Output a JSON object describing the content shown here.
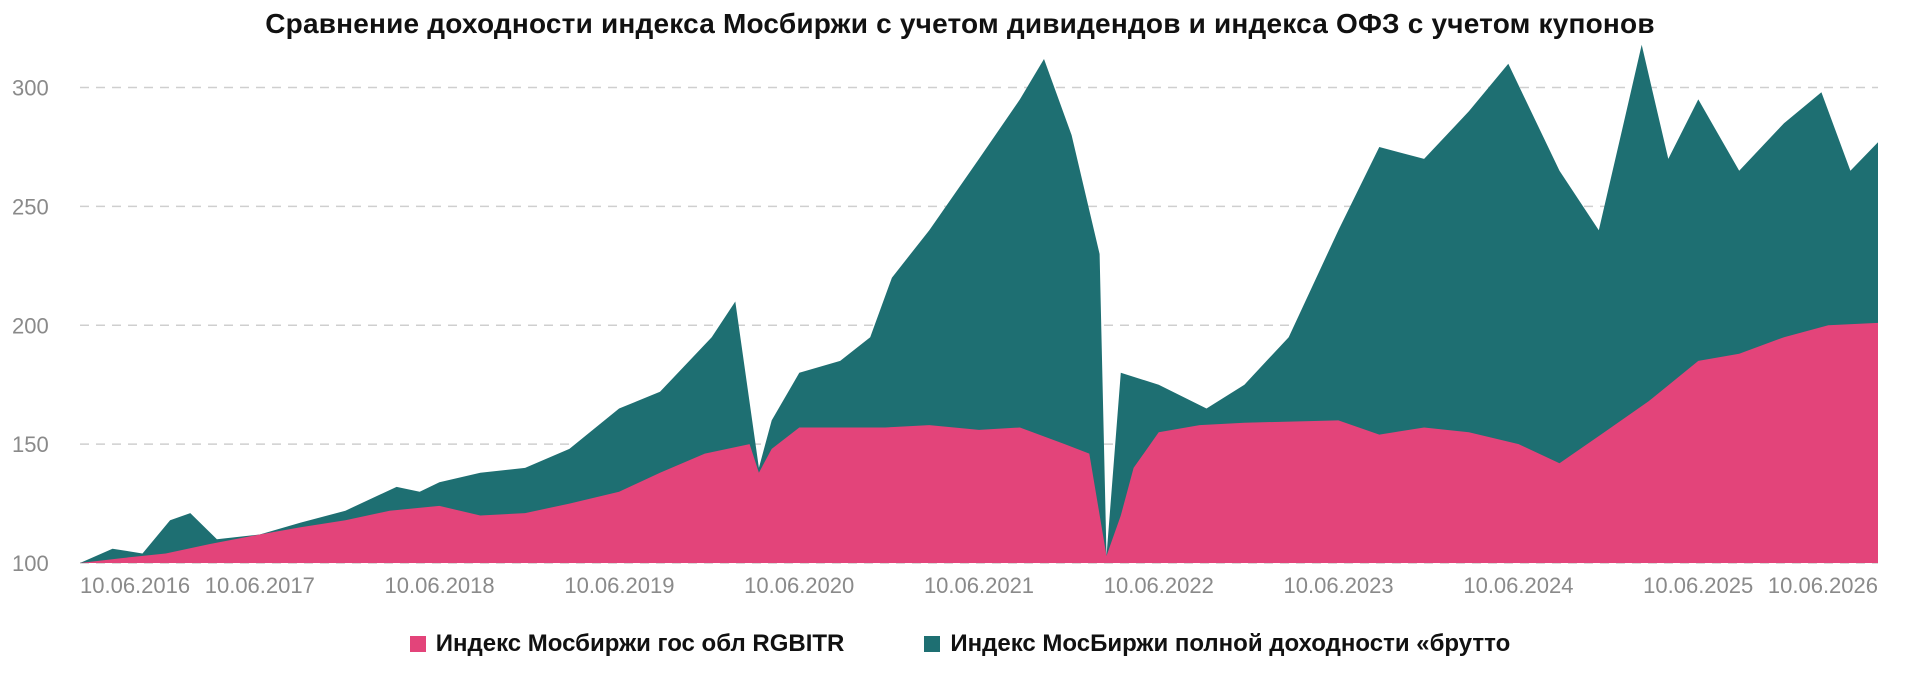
{
  "chart_data": {
    "type": "area",
    "title": "Сравнение доходности индекса Мосбиржи с учетом дивидендов и индекса ОФЗ с учетом купонов",
    "xlabel": "",
    "ylabel": "",
    "x_tick_labels": [
      "10.06.2016",
      "10.06.2017",
      "10.06.2018",
      "10.06.2019",
      "10.06.2020",
      "10.06.2021",
      "10.06.2022",
      "10.06.2023",
      "10.06.2024",
      "10.06.2025",
      "10.06.2026"
    ],
    "y_ticks": [
      100,
      150,
      200,
      250,
      300
    ],
    "ylim": [
      100,
      320
    ],
    "xlim": [
      "2016-06-10",
      "2026-06-10"
    ],
    "grid": "horizontal dashed",
    "legend_position": "bottom",
    "series": [
      {
        "name": "Индекс Мосбиржи гос обл RGBITR",
        "color": "#e3447a",
        "points": [
          [
            "2016-06-10",
            100
          ],
          [
            "2016-09-01",
            102
          ],
          [
            "2016-12-01",
            104
          ],
          [
            "2017-03-01",
            108
          ],
          [
            "2017-06-10",
            112
          ],
          [
            "2017-09-01",
            115
          ],
          [
            "2017-12-01",
            118
          ],
          [
            "2018-03-01",
            122
          ],
          [
            "2018-06-10",
            124
          ],
          [
            "2018-09-01",
            120
          ],
          [
            "2018-12-01",
            121
          ],
          [
            "2019-03-01",
            125
          ],
          [
            "2019-06-10",
            130
          ],
          [
            "2019-09-01",
            138
          ],
          [
            "2019-12-01",
            146
          ],
          [
            "2020-03-01",
            150
          ],
          [
            "2020-03-20",
            138
          ],
          [
            "2020-04-15",
            148
          ],
          [
            "2020-06-10",
            157
          ],
          [
            "2020-12-01",
            157
          ],
          [
            "2021-03-01",
            158
          ],
          [
            "2021-06-10",
            156
          ],
          [
            "2021-09-01",
            157
          ],
          [
            "2021-12-01",
            150
          ],
          [
            "2022-01-20",
            146
          ],
          [
            "2022-02-24",
            103
          ],
          [
            "2022-03-25",
            120
          ],
          [
            "2022-04-20",
            140
          ],
          [
            "2022-06-10",
            155
          ],
          [
            "2022-09-01",
            158
          ],
          [
            "2022-12-01",
            159
          ],
          [
            "2023-06-10",
            160
          ],
          [
            "2023-09-01",
            154
          ],
          [
            "2023-12-01",
            157
          ],
          [
            "2024-03-01",
            155
          ],
          [
            "2024-06-10",
            150
          ],
          [
            "2024-09-01",
            142
          ],
          [
            "2024-12-01",
            155
          ],
          [
            "2025-03-01",
            168
          ],
          [
            "2025-06-10",
            185
          ],
          [
            "2025-09-01",
            188
          ],
          [
            "2025-12-01",
            195
          ],
          [
            "2026-03-01",
            200
          ],
          [
            "2026-06-10",
            201
          ]
        ]
      },
      {
        "name": "Индекс МосБиржи полной доходности «брутто",
        "color": "#1e6f72",
        "points": [
          [
            "2016-06-10",
            100
          ],
          [
            "2016-08-15",
            106
          ],
          [
            "2016-10-15",
            104
          ],
          [
            "2016-12-10",
            118
          ],
          [
            "2017-01-20",
            121
          ],
          [
            "2017-03-15",
            110
          ],
          [
            "2017-06-10",
            112
          ],
          [
            "2017-09-01",
            117
          ],
          [
            "2017-12-01",
            122
          ],
          [
            "2018-03-15",
            132
          ],
          [
            "2018-05-01",
            130
          ],
          [
            "2018-06-10",
            134
          ],
          [
            "2018-09-01",
            138
          ],
          [
            "2018-12-01",
            140
          ],
          [
            "2019-03-01",
            148
          ],
          [
            "2019-06-10",
            165
          ],
          [
            "2019-09-01",
            172
          ],
          [
            "2019-12-15",
            195
          ],
          [
            "2020-02-01",
            210
          ],
          [
            "2020-03-20",
            140
          ],
          [
            "2020-04-15",
            160
          ],
          [
            "2020-06-10",
            180
          ],
          [
            "2020-09-01",
            185
          ],
          [
            "2020-11-01",
            195
          ],
          [
            "2020-12-15",
            220
          ],
          [
            "2021-03-01",
            240
          ],
          [
            "2021-06-10",
            270
          ],
          [
            "2021-09-01",
            295
          ],
          [
            "2021-10-20",
            312
          ],
          [
            "2021-12-15",
            280
          ],
          [
            "2022-02-10",
            230
          ],
          [
            "2022-02-24",
            103
          ],
          [
            "2022-03-25",
            180
          ],
          [
            "2022-06-10",
            175
          ],
          [
            "2022-09-15",
            165
          ],
          [
            "2022-12-01",
            175
          ],
          [
            "2023-03-01",
            195
          ],
          [
            "2023-06-10",
            240
          ],
          [
            "2023-09-01",
            275
          ],
          [
            "2023-12-01",
            270
          ],
          [
            "2024-03-01",
            290
          ],
          [
            "2024-05-20",
            310
          ],
          [
            "2024-09-01",
            265
          ],
          [
            "2024-11-20",
            240
          ],
          [
            "2025-01-15",
            290
          ],
          [
            "2025-02-15",
            318
          ],
          [
            "2025-04-10",
            270
          ],
          [
            "2025-06-10",
            295
          ],
          [
            "2025-09-01",
            265
          ],
          [
            "2025-12-01",
            285
          ],
          [
            "2026-02-15",
            298
          ],
          [
            "2026-04-15",
            265
          ],
          [
            "2026-06-10",
            277
          ]
        ]
      }
    ]
  }
}
